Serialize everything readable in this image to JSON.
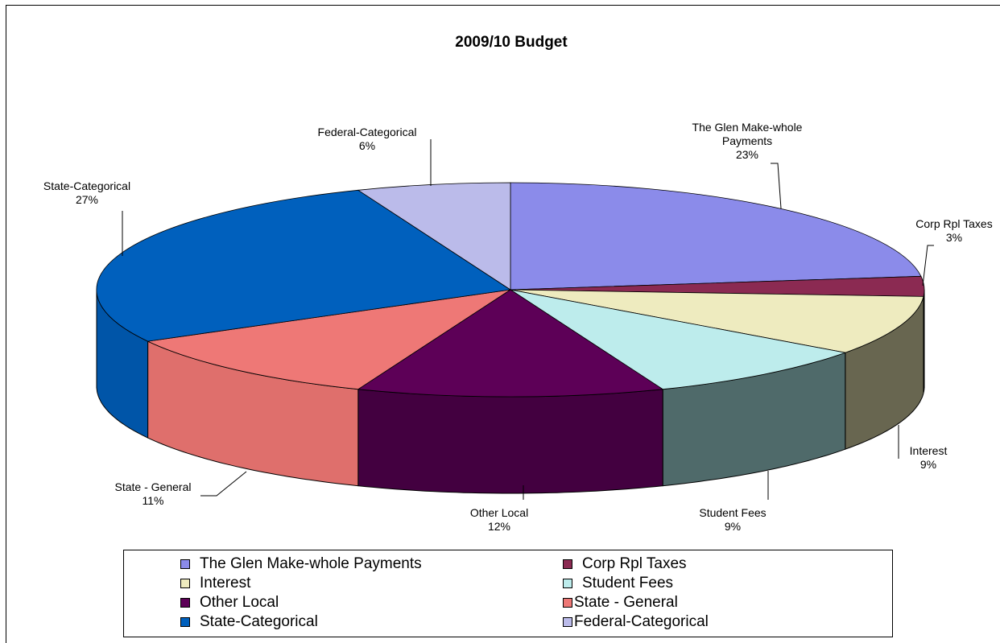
{
  "chart_data": {
    "type": "pie",
    "title": "2009/10 Budget",
    "slices": [
      {
        "name": "The Glen Make-whole Payments",
        "label": [
          "The Glen Make-whole",
          "Payments",
          "23%"
        ],
        "percent": 23,
        "top_color": "#8b8bea",
        "side_color": "#7070c4"
      },
      {
        "name": "Corp Rpl Taxes",
        "label": [
          "Corp Rpl Taxes",
          "3%"
        ],
        "percent": 3,
        "top_color": "#8b2a52",
        "side_color": "#6c1f3f"
      },
      {
        "name": "Interest",
        "label": [
          "Interest",
          "9%"
        ],
        "percent": 9,
        "top_color": "#eeebbf",
        "side_color": "#686650"
      },
      {
        "name": "Student Fees",
        "label": [
          "Student Fees",
          "9%"
        ],
        "percent": 9,
        "top_color": "#bdecec",
        "side_color": "#4f6a6a"
      },
      {
        "name": "Other Local",
        "label": [
          "Other Local",
          "12%"
        ],
        "percent": 12,
        "top_color": "#5d0057",
        "side_color": "#430040"
      },
      {
        "name": "State - General",
        "label": [
          "State - General",
          "11%"
        ],
        "percent": 11,
        "top_color": "#ee7876",
        "side_color": "#df6f6c"
      },
      {
        "name": "State-Categorical",
        "label": [
          "State-Categorical",
          "27%"
        ],
        "percent": 27,
        "top_color": "#0060bd",
        "side_color": "#0055a8"
      },
      {
        "name": "Federal-Categorical",
        "label": [
          "Federal-Categorical",
          "6%"
        ],
        "percent": 6,
        "top_color": "#bbbbea",
        "side_color": "#9f9fd0"
      }
    ],
    "legend": [
      "The Glen Make-whole Payments",
      "Corp Rpl Taxes",
      "Interest",
      "Student Fees",
      "Other Local",
      "State - General",
      "State-Categorical",
      "Federal-Categorical"
    ],
    "legend_position": "bottom"
  }
}
